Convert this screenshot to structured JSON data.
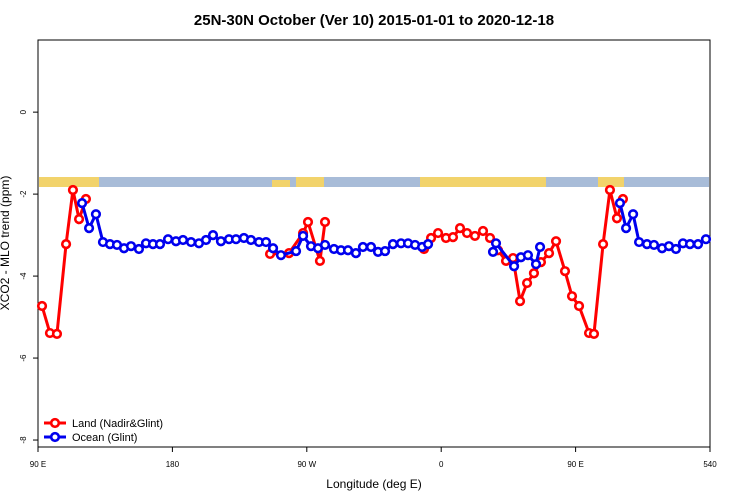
{
  "chart_data": {
    "type": "line",
    "title": "25N-30N October (Ver 10)   2015-01-01 to 2020-12-18",
    "x_label": "Longitude (deg E)",
    "y_label": "XCO2 - MLO trend (ppm)",
    "xlim": [
      90,
      540
    ],
    "xticks": [
      {
        "value": 90,
        "label": "90 E"
      },
      180,
      {
        "value": 270,
        "label": "90 W"
      },
      {
        "value": 360,
        "label": "0"
      },
      {
        "value": 450,
        "label": "90 E"
      },
      540
    ],
    "ylim": [
      -8.17,
      1.76
    ],
    "yticks": [
      0,
      -2,
      -4,
      -6,
      -8
    ],
    "legend": "bottom-left",
    "series": [
      {
        "name": "Land (Nadir&Glint)",
        "color": "#ff0000",
        "x": [
          92.7,
          98.0,
          102.7,
          108.8,
          113.4,
          117.5,
          122.1,
          null,
          245.4,
          258.1,
          267.5,
          270.8,
          278.8,
          282.2,
          null,
          348.5,
          353.2,
          357.9,
          363.2,
          367.9,
          372.6,
          377.3,
          382.6,
          388.0,
          392.7,
          398.0,
          403.4,
          408.1,
          412.8,
          417.5,
          422.1,
          426.8,
          432.2,
          436.9,
          442.9,
          447.6,
          452.3,
          459.0,
          462.3,
          468.4,
          473.0,
          477.7,
          481.7
        ],
        "values": [
          -4.73,
          -5.39,
          -5.41,
          -3.22,
          -1.9,
          -2.61,
          -2.12,
          null,
          -3.46,
          -3.44,
          -2.95,
          -2.68,
          -3.63,
          -2.68,
          null,
          -3.34,
          -3.07,
          -2.95,
          -3.07,
          -3.05,
          -2.83,
          -2.95,
          -3.02,
          -2.9,
          -3.07,
          -3.37,
          -3.63,
          -3.56,
          -4.61,
          -4.17,
          -3.93,
          -3.66,
          -3.44,
          -3.15,
          -3.88,
          -4.49,
          -4.73,
          -5.39,
          -5.41,
          -3.22,
          -1.9,
          -2.59,
          -2.12
        ]
      },
      {
        "name": "Ocean (Glint)",
        "color": "#0000ee",
        "x": [
          119.5,
          124.2,
          128.8,
          133.5,
          138.2,
          142.9,
          147.6,
          152.3,
          157.6,
          162.3,
          167.0,
          171.7,
          177.1,
          182.4,
          187.1,
          192.5,
          197.8,
          202.5,
          207.2,
          212.5,
          217.9,
          222.6,
          227.9,
          232.6,
          238.0,
          242.7,
          247.4,
          252.7,
          262.8,
          267.5,
          272.8,
          277.5,
          282.2,
          288.2,
          292.9,
          297.6,
          302.9,
          307.6,
          313.0,
          317.7,
          322.4,
          327.7,
          333.1,
          337.8,
          342.5,
          347.2,
          351.2,
          null,
          394.7,
          396.7,
          408.8,
          413.4,
          418.1,
          423.5,
          426.2,
          null,
          479.7,
          483.8,
          488.5,
          492.5,
          497.8,
          502.5,
          507.9,
          512.5,
          517.2,
          521.9,
          526.6,
          532.0,
          537.3
        ],
        "values": [
          -2.22,
          -2.83,
          -2.49,
          -3.17,
          -3.22,
          -3.24,
          -3.32,
          -3.27,
          -3.34,
          -3.2,
          -3.22,
          -3.22,
          -3.1,
          -3.15,
          -3.12,
          -3.17,
          -3.2,
          -3.12,
          -3.0,
          -3.15,
          -3.1,
          -3.1,
          -3.07,
          -3.12,
          -3.17,
          -3.17,
          -3.32,
          -3.49,
          -3.39,
          -3.02,
          -3.27,
          -3.32,
          -3.24,
          -3.34,
          -3.37,
          -3.37,
          -3.44,
          -3.29,
          -3.29,
          -3.41,
          -3.39,
          -3.22,
          -3.2,
          -3.2,
          -3.24,
          -3.29,
          -3.22,
          null,
          -3.41,
          -3.2,
          -3.76,
          -3.54,
          -3.49,
          -3.71,
          -3.29,
          null,
          -2.22,
          -2.83,
          -2.49,
          -3.17,
          -3.22,
          -3.24,
          -3.32,
          -3.27,
          -3.34,
          -3.2,
          -3.22,
          -3.22,
          -3.1
        ]
      }
    ]
  }
}
